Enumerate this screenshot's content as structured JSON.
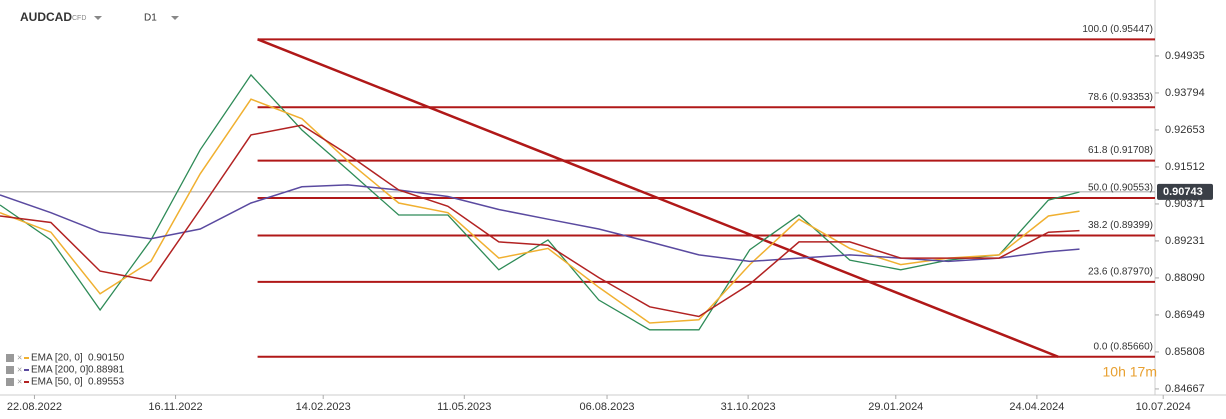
{
  "chart_data": {
    "type": "line",
    "symbol": "AUDCAD",
    "instrument": "CFD",
    "interval": "D1",
    "timer": "10h 17m",
    "x": [
      "2022-08-01",
      "2022-09-01",
      "2022-10-01",
      "2022-11-01",
      "2022-12-01",
      "2023-01-01",
      "2023-02-01",
      "2023-03-01",
      "2023-04-01",
      "2023-05-01",
      "2023-06-01",
      "2023-07-01",
      "2023-08-01",
      "2023-09-01",
      "2023-10-01",
      "2023-11-01",
      "2023-12-01",
      "2024-01-01",
      "2024-02-01",
      "2024-03-01",
      "2024-04-01",
      "2024-05-01",
      "2024-05-20"
    ],
    "price": {
      "color": "#2e8b57",
      "values": [
        0.9034,
        0.8926,
        0.871,
        0.8926,
        0.9204,
        0.9435,
        0.9265,
        0.9142,
        0.9003,
        0.9003,
        0.8834,
        0.8926,
        0.8741,
        0.8649,
        0.8649,
        0.8896,
        0.9003,
        0.8864,
        0.8834,
        0.8864,
        0.888,
        0.9049,
        0.9074
      ]
    },
    "series": [
      {
        "name": "EMA [20, 0]",
        "legend_value": 0.9015,
        "legend_label": "0.90150",
        "color": "#f0b030",
        "values": [
          0.901,
          0.895,
          0.876,
          0.886,
          0.913,
          0.936,
          0.93,
          0.917,
          0.904,
          0.901,
          0.887,
          0.89,
          0.878,
          0.867,
          0.868,
          0.885,
          0.899,
          0.89,
          0.885,
          0.887,
          0.888,
          0.9,
          0.9015
        ]
      },
      {
        "name": "EMA [200, 0]",
        "legend_value": 0.88981,
        "color": "#5a4aa0",
        "values": [
          0.9065,
          0.901,
          0.895,
          0.893,
          0.896,
          0.904,
          0.909,
          0.9096,
          0.908,
          0.906,
          0.902,
          0.899,
          0.896,
          0.892,
          0.888,
          0.886,
          0.887,
          0.888,
          0.887,
          0.886,
          0.887,
          0.889,
          0.8898
        ]
      },
      {
        "name": "EMA [50, 0]",
        "legend_value": 0.89553,
        "color": "#b22222",
        "values": [
          0.9,
          0.898,
          0.883,
          0.88,
          0.902,
          0.925,
          0.928,
          0.919,
          0.908,
          0.903,
          0.892,
          0.891,
          0.881,
          0.872,
          0.869,
          0.879,
          0.892,
          0.892,
          0.887,
          0.887,
          0.887,
          0.895,
          0.8955
        ]
      }
    ],
    "last_price": 0.90743,
    "fib_color": "#b01818",
    "fib_start": "2023-01-05",
    "fib_levels": [
      {
        "value": 0.95447,
        "label": "100.0 (0.95447)"
      },
      {
        "value": 0.93353,
        "label": "78.6 (0.93353)"
      },
      {
        "value": 0.91708,
        "label": "61.8 (0.91708)"
      },
      {
        "value": 0.90553,
        "label": "50.0 (0.90553)"
      },
      {
        "value": 0.89399,
        "label": "38.2 (0.89399)"
      },
      {
        "value": 0.8797,
        "label": "23.6 (0.87970)"
      },
      {
        "value": 0.8566,
        "label": "0.0 (0.85660)"
      }
    ],
    "trendline": {
      "start": {
        "x": "2023-01-05",
        "value": 0.95447
      },
      "end": {
        "x": "2024-05-07",
        "value": 0.8566
      }
    },
    "xlim": [
      "2022-08-01",
      "2024-07-05"
    ],
    "xticks": [
      {
        "value": "2022-08-22",
        "label": "22.08.2022"
      },
      {
        "value": "2022-11-16",
        "label": "16.11.2022"
      },
      {
        "value": "2023-02-14",
        "label": "14.02.2023"
      },
      {
        "value": "2023-05-11",
        "label": "11.05.2023"
      },
      {
        "value": "2023-08-06",
        "label": "06.08.2023"
      },
      {
        "value": "2023-10-31",
        "label": "31.10.2023"
      },
      {
        "value": "2024-01-29",
        "label": "29.01.2024"
      },
      {
        "value": "2024-04-24",
        "label": "24.04.2024"
      },
      {
        "value": "2024-07-10",
        "label": "10.07.2024"
      }
    ],
    "ylim": [
      0.8448,
      0.9666
    ],
    "yticks": [
      0.94935,
      0.93794,
      0.92653,
      0.91512,
      0.90371,
      0.89231,
      {
        "value": 0.8809,
        "label": "0.88090"
      },
      0.86949,
      0.85808,
      0.84667
    ]
  }
}
